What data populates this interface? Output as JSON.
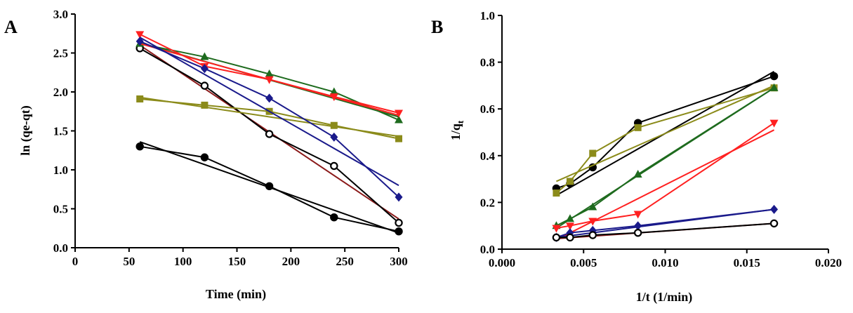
{
  "chart_data": [
    {
      "type": "line",
      "panel": "A",
      "title": "",
      "xlabel": "Time (min)",
      "ylabel": "ln (qe-qt)",
      "xlim": [
        0,
        300
      ],
      "ylim": [
        0,
        3.0
      ],
      "xticks": [
        "0",
        "50",
        "100",
        "150",
        "200",
        "250",
        "300"
      ],
      "yticks": [
        "0.0",
        "0.5",
        "1.0",
        "1.5",
        "2.0",
        "2.5",
        "3.0"
      ],
      "series": [
        {
          "name": "black-filled-circle",
          "color": "#000000",
          "marker": "circle-filled",
          "x": [
            60,
            120,
            180,
            240,
            300
          ],
          "y": [
            1.3,
            1.16,
            0.79,
            0.39,
            0.21
          ],
          "fit": [
            1.36,
            0.19
          ]
        },
        {
          "name": "black-open-circle",
          "color": "#000000",
          "marker": "circle-open",
          "fitColor": "#8b1a1a",
          "x": [
            60,
            120,
            180,
            240,
            300
          ],
          "y": [
            2.56,
            2.08,
            1.46,
            1.05,
            0.32
          ],
          "fit": [
            2.6,
            0.37
          ]
        },
        {
          "name": "olive-square",
          "color": "#8b8b1a",
          "marker": "square",
          "x": [
            60,
            120,
            180,
            240,
            300
          ],
          "y": [
            1.91,
            1.83,
            1.75,
            1.57,
            1.4
          ],
          "fit": [
            1.93,
            1.43
          ]
        },
        {
          "name": "green-triangle-up",
          "color": "#1e6b1e",
          "marker": "triangle-up",
          "x": [
            60,
            120,
            180,
            240,
            300
          ],
          "y": [
            2.62,
            2.45,
            2.23,
            2.0,
            1.64
          ],
          "fit": [
            2.63,
            1.68
          ]
        },
        {
          "name": "red-triangle-down",
          "color": "#ff2020",
          "marker": "triangle-down",
          "x": [
            60,
            120,
            180,
            240,
            300
          ],
          "y": [
            2.74,
            2.33,
            2.16,
            1.94,
            1.73
          ],
          "fit": [
            2.62,
            1.7
          ]
        },
        {
          "name": "blue-diamond",
          "color": "#1a1a8b",
          "marker": "diamond",
          "x": [
            60,
            120,
            180,
            240,
            300
          ],
          "y": [
            2.65,
            2.3,
            1.92,
            1.42,
            0.65
          ],
          "fit": [
            2.7,
            0.8
          ]
        }
      ]
    },
    {
      "type": "line",
      "panel": "B",
      "title": "",
      "xlabel": "1/t (1/min)",
      "ylabel": "1/q",
      "ylabel_subscript": "t",
      "xlim": [
        0,
        0.02
      ],
      "ylim": [
        0,
        1.0
      ],
      "xticks": [
        "0.000",
        "0.005",
        "0.010",
        "0.015",
        "0.020"
      ],
      "yticks": [
        "0.0",
        "0.2",
        "0.4",
        "0.6",
        "0.8",
        "1.0"
      ],
      "series": [
        {
          "name": "black-filled-circle",
          "color": "#000000",
          "marker": "circle-filled",
          "x": [
            0.00333,
            0.00417,
            0.00556,
            0.00833,
            0.01667
          ],
          "y": [
            0.26,
            0.28,
            0.35,
            0.54,
            0.74
          ],
          "fit": [
            0.23,
            0.76
          ]
        },
        {
          "name": "olive-square",
          "color": "#8b8b1a",
          "marker": "square",
          "x": [
            0.00333,
            0.00417,
            0.00556,
            0.00833,
            0.01667
          ],
          "y": [
            0.24,
            0.29,
            0.41,
            0.52,
            0.69
          ],
          "fit": [
            0.29,
            0.7
          ]
        },
        {
          "name": "green-triangle-up",
          "color": "#1e6b1e",
          "marker": "triangle-up",
          "x": [
            0.00333,
            0.00417,
            0.00556,
            0.00833,
            0.01667
          ],
          "y": [
            0.1,
            0.13,
            0.18,
            0.32,
            0.69
          ],
          "fit": [
            0.09,
            0.69
          ]
        },
        {
          "name": "red-triangle-down",
          "color": "#ff2020",
          "marker": "triangle-down",
          "x": [
            0.00333,
            0.00417,
            0.00556,
            0.00833,
            0.01667
          ],
          "y": [
            0.09,
            0.1,
            0.12,
            0.15,
            0.54
          ],
          "fit": [
            0.04,
            0.51
          ]
        },
        {
          "name": "blue-diamond",
          "color": "#1a1a8b",
          "marker": "diamond",
          "x": [
            0.00333,
            0.00417,
            0.00556,
            0.00833,
            0.01667
          ],
          "y": [
            0.05,
            0.07,
            0.08,
            0.1,
            0.17
          ],
          "fit": [
            0.05,
            0.17
          ]
        },
        {
          "name": "black-open-circle",
          "color": "#000000",
          "marker": "circle-open",
          "fitColor": "#8b1a1a",
          "x": [
            0.00333,
            0.00417,
            0.00556,
            0.00833,
            0.01667
          ],
          "y": [
            0.05,
            0.05,
            0.06,
            0.07,
            0.11
          ],
          "fit": [
            0.045,
            0.11
          ]
        }
      ]
    }
  ]
}
